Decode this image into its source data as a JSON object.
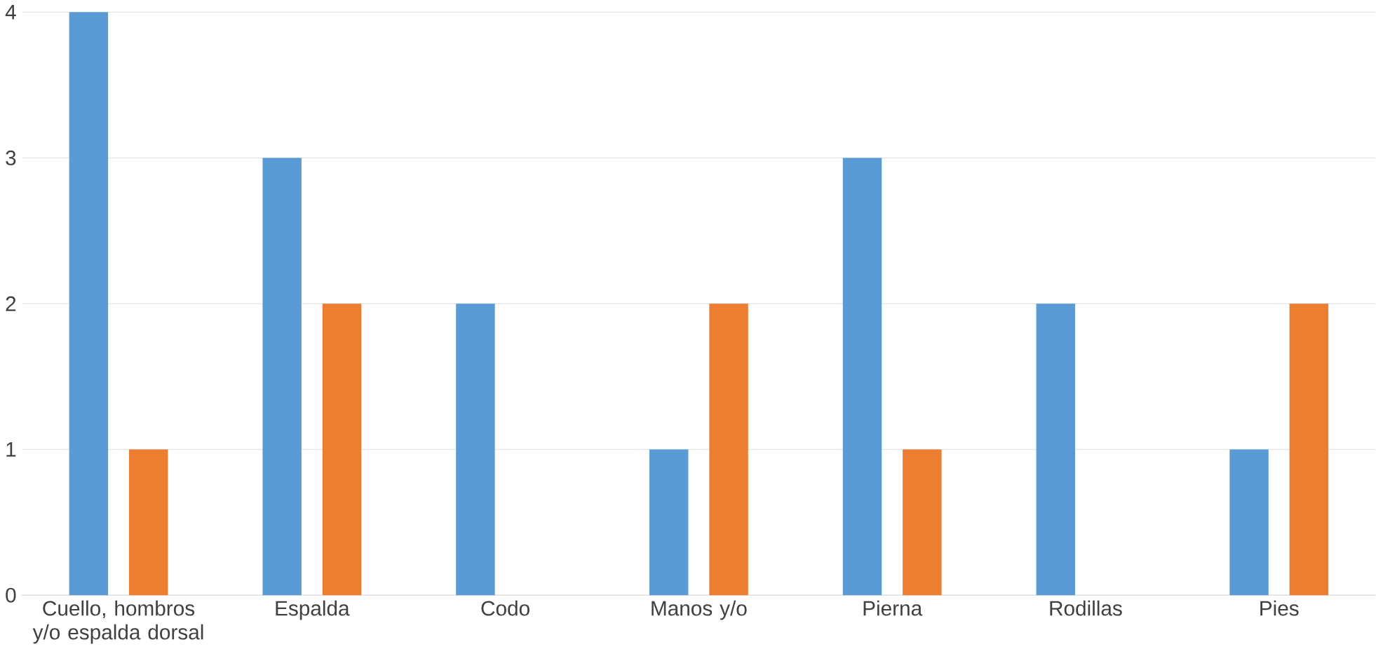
{
  "chart_data": {
    "type": "bar",
    "categories": [
      "Cuello, hombros y/o espalda dorsal",
      "Espalda",
      "Codo",
      "Manos y/o",
      "Pierna",
      "Rodillas",
      "Pies"
    ],
    "series": [
      {
        "color": "#5b9bd5",
        "values": [
          4,
          3,
          2,
          1,
          3,
          2,
          1
        ]
      },
      {
        "color": "#ed7d31",
        "values": [
          1,
          2,
          null,
          2,
          1,
          null,
          2
        ]
      }
    ],
    "ylim": [
      0,
      4
    ],
    "yticks": [
      0,
      1,
      2,
      3,
      4
    ],
    "grid": "y"
  }
}
